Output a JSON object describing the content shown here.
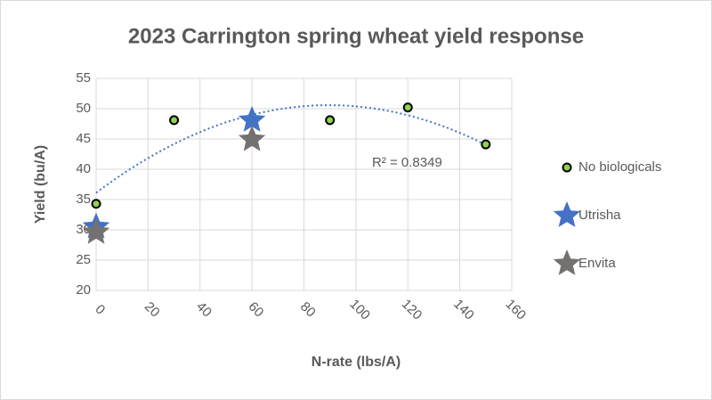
{
  "chart_data": {
    "type": "scatter",
    "title": "2023 Carrington spring wheat yield response",
    "x_label": "N-rate (lbs/A)",
    "y_label": "Yield (bu/A)",
    "xlim": [
      0,
      160
    ],
    "xticks": [
      0,
      20,
      40,
      60,
      80,
      100,
      120,
      140,
      160
    ],
    "ylim": [
      20,
      55
    ],
    "yticks": [
      20,
      25,
      30,
      35,
      40,
      45,
      50,
      55
    ],
    "grid": true,
    "legend": "right",
    "series": [
      {
        "name": "No biologicals",
        "color": "#92d050",
        "marker": "circle",
        "x": [
          0,
          30,
          60,
          90,
          120,
          150
        ],
        "values": [
          34.3,
          48.1,
          48,
          48.1,
          50.2,
          44.1
        ],
        "trendline": {
          "order": 2,
          "color": "#4472c4",
          "label": "R² = 0.8349"
        }
      },
      {
        "name": "Utrisha",
        "color": "#4472c4",
        "marker": "star",
        "x": [
          0,
          60
        ],
        "values": [
          30.5,
          48.1
        ]
      },
      {
        "name": "Envita",
        "color": "#767171",
        "marker": "star",
        "x": [
          0,
          60
        ],
        "values": [
          29.6,
          44.9
        ]
      }
    ]
  }
}
